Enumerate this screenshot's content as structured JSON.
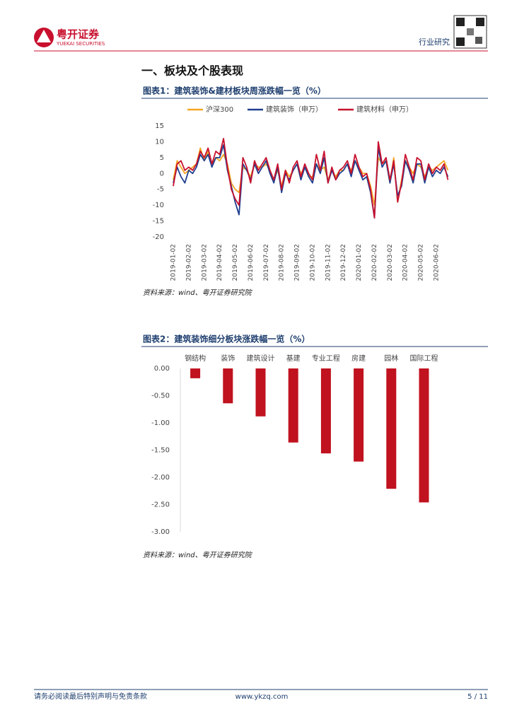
{
  "header": {
    "brand": "粤开证券",
    "brand_en": "YUEKAI SECURITIES",
    "category": "行业研究"
  },
  "section_title": "一、板块及个股表现",
  "chart_data": [
    {
      "type": "line",
      "title": "图表1：建筑装饰&建材板块周涨跌幅一览（%）",
      "source": "资料来源：wind、粤开证券研究院",
      "categories": [
        "2019-01-02",
        null,
        null,
        null,
        "2019-02-02",
        null,
        null,
        null,
        "2019-03-02",
        null,
        null,
        null,
        "2019-04-02",
        null,
        null,
        null,
        "2019-05-02",
        null,
        null,
        null,
        "2019-06-02",
        null,
        null,
        null,
        "2019-07-02",
        null,
        null,
        null,
        "2019-08-02",
        null,
        null,
        null,
        "2019-09-02",
        null,
        null,
        null,
        "2019-10-02",
        null,
        null,
        null,
        "2019-11-02",
        null,
        null,
        null,
        "2019-12-02",
        null,
        null,
        null,
        "2020-01-02",
        null,
        null,
        null,
        "2020-02-02",
        null,
        null,
        null,
        "2020-03-02",
        null,
        null,
        null,
        "2020-04-02",
        null,
        null,
        null,
        "2020-05-02",
        null,
        null,
        null,
        "2020-06-02",
        null,
        null,
        null
      ],
      "series": [
        {
          "name": "沪深300",
          "color": "#f5a623",
          "values": [
            -2,
            4,
            2,
            0,
            1,
            2,
            3,
            8,
            4,
            7,
            3,
            5,
            4,
            6,
            3,
            -3,
            -5,
            -6,
            2,
            1,
            -1,
            3,
            2,
            2,
            3,
            1,
            -2,
            1,
            -4,
            1,
            -1,
            1,
            3,
            0,
            2,
            -1,
            -1,
            3,
            1,
            2,
            -2,
            1,
            -1,
            1,
            1,
            3,
            1,
            4,
            2,
            0,
            0,
            -4,
            -10,
            5,
            3,
            4,
            -3,
            5,
            -9,
            -2,
            4,
            2,
            0,
            3,
            2,
            -1,
            2,
            1,
            2,
            3,
            4,
            1
          ]
        },
        {
          "name": "建筑装饰（申万）",
          "color": "#1f3f8f",
          "values": [
            -3,
            2,
            -1,
            -3,
            1,
            0,
            2,
            6,
            4,
            6,
            2,
            5,
            5,
            9,
            1,
            -4,
            -9,
            -13,
            3,
            1,
            -2,
            3,
            0,
            2,
            4,
            0,
            -3,
            2,
            -6,
            0,
            -2,
            1,
            3,
            -2,
            2,
            -1,
            -3,
            3,
            0,
            5,
            -3,
            1,
            -2,
            0,
            1,
            3,
            -1,
            4,
            1,
            -2,
            -1,
            -6,
            -14,
            8,
            2,
            4,
            -3,
            3,
            -7,
            -4,
            4,
            1,
            -3,
            3,
            3,
            -3,
            2,
            -1,
            1,
            0,
            2,
            -1
          ]
        },
        {
          "name": "建筑材料（申万）",
          "color": "#c8102e",
          "values": [
            -4,
            3,
            4,
            1,
            2,
            1,
            3,
            7,
            5,
            8,
            3,
            7,
            6,
            11,
            2,
            -5,
            -8,
            -10,
            5,
            2,
            -3,
            4,
            1,
            3,
            5,
            1,
            -2,
            3,
            -5,
            1,
            -3,
            2,
            4,
            -1,
            3,
            0,
            -2,
            6,
            1,
            7,
            -3,
            2,
            -2,
            1,
            2,
            4,
            0,
            6,
            2,
            -1,
            0,
            -5,
            -14,
            10,
            3,
            5,
            -2,
            4,
            -9,
            -3,
            6,
            2,
            -2,
            5,
            4,
            -2,
            3,
            0,
            2,
            1,
            3,
            -2
          ]
        }
      ],
      "ylim": [
        -20,
        15
      ],
      "yticks": [
        -20,
        -15,
        -10,
        -5,
        0,
        5,
        10,
        15
      ],
      "legend": "top"
    },
    {
      "type": "bar",
      "title": "图表2：建筑装饰细分板块涨跌幅一览（%）",
      "source": "资料来源：wind、粤开证券研究院",
      "categories": [
        "钢结构",
        "装饰",
        "建筑设计",
        "基建",
        "专业工程",
        "房建",
        "园林",
        "国际工程"
      ],
      "values": [
        -0.18,
        -0.64,
        -0.88,
        -1.36,
        -1.56,
        -1.71,
        -2.21,
        -2.46
      ],
      "color": "#c0121f",
      "ylim": [
        -3,
        0
      ],
      "yticks": [
        {
          "value": 0,
          "label": "0.00"
        },
        {
          "value": -0.5,
          "label": "-0.50"
        },
        {
          "value": -1,
          "label": "-1.00"
        },
        {
          "value": -1.5,
          "label": "-1.50"
        },
        {
          "value": -2,
          "label": "-2.00"
        },
        {
          "value": -2.5,
          "label": "-2.50"
        },
        {
          "value": -3,
          "label": "-3.00"
        }
      ]
    }
  ],
  "footer": {
    "disclaimer": "请务必阅读最后特别声明与免责条款",
    "website": "www.ykzq.com",
    "page": "5 / 11"
  }
}
